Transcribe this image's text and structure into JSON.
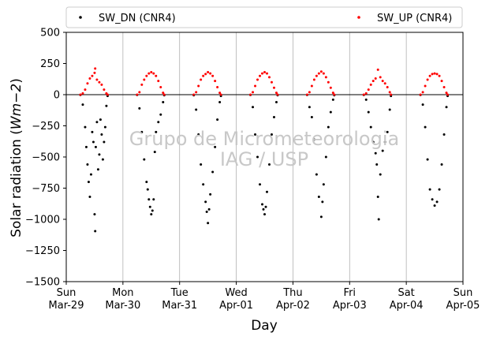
{
  "chart_data": {
    "type": "scatter",
    "xlabel": "Day",
    "ylabel": "Solar radiation (Wm−2)",
    "ylabel_parts": {
      "prefix": "Solar radiation (",
      "unit": "Wm−2",
      "suffix": ")"
    },
    "xlim": [
      "2020-03-29 00:00",
      "2020-04-05 00:00"
    ],
    "ylim": [
      -1500,
      500
    ],
    "yticks": [
      500,
      250,
      0,
      -250,
      -500,
      -750,
      -1000,
      -1250,
      -1500
    ],
    "ytick_labels": [
      "500",
      "250",
      "0",
      "−250",
      "−500",
      "−750",
      "−1000",
      "−1250",
      "−1500"
    ],
    "xticks": [
      {
        "date": "2020-03-29",
        "day": "Sun",
        "label": "Mar-29"
      },
      {
        "date": "2020-03-30",
        "day": "Mon",
        "label": "Mar-30"
      },
      {
        "date": "2020-03-31",
        "day": "Tue",
        "label": "Mar-31"
      },
      {
        "date": "2020-04-01",
        "day": "Wed",
        "label": "Apr-01"
      },
      {
        "date": "2020-04-02",
        "day": "Thu",
        "label": "Apr-02"
      },
      {
        "date": "2020-04-03",
        "day": "Fri",
        "label": "Apr-03"
      },
      {
        "date": "2020-04-04",
        "day": "Sat",
        "label": "Apr-04"
      },
      {
        "date": "2020-04-05",
        "day": "Sun",
        "label": "Apr-05"
      }
    ],
    "grid": "vertical",
    "zero_line": true,
    "legend": {
      "placement": "top",
      "entries": [
        "SW_DN (CNR4)",
        "SW_UP (CNR4)"
      ]
    },
    "watermark": [
      "Grupo de Micrometeorologia",
      "IAG / USP"
    ],
    "series": [
      {
        "name": "SW_DN (CNR4)",
        "color": "#000000",
        "points": [
          [
            "2020-03-29 06:00",
            -2
          ],
          [
            "2020-03-29 07:00",
            -80
          ],
          [
            "2020-03-29 08:00",
            -260
          ],
          [
            "2020-03-29 08:30",
            -420
          ],
          [
            "2020-03-29 09:00",
            -560
          ],
          [
            "2020-03-29 09:30",
            -700
          ],
          [
            "2020-03-29 10:00",
            -820
          ],
          [
            "2020-03-29 10:30",
            -640
          ],
          [
            "2020-03-29 11:00",
            -300
          ],
          [
            "2020-03-29 11:30",
            -380
          ],
          [
            "2020-03-29 12:00",
            -960
          ],
          [
            "2020-03-29 12:15",
            -1095
          ],
          [
            "2020-03-29 12:30",
            -420
          ],
          [
            "2020-03-29 13:00",
            -220
          ],
          [
            "2020-03-29 13:30",
            -600
          ],
          [
            "2020-03-29 14:00",
            -480
          ],
          [
            "2020-03-29 14:30",
            -200
          ],
          [
            "2020-03-29 15:00",
            -320
          ],
          [
            "2020-03-29 15:30",
            -520
          ],
          [
            "2020-03-29 16:00",
            -380
          ],
          [
            "2020-03-29 16:30",
            -260
          ],
          [
            "2020-03-29 17:00",
            -90
          ],
          [
            "2020-03-29 17:30",
            -10
          ],
          [
            "2020-03-30 06:00",
            -2
          ],
          [
            "2020-03-30 07:00",
            -110
          ],
          [
            "2020-03-30 08:00",
            -300
          ],
          [
            "2020-03-30 09:00",
            -520
          ],
          [
            "2020-03-30 10:00",
            -700
          ],
          [
            "2020-03-30 10:30",
            -760
          ],
          [
            "2020-03-30 11:00",
            -840
          ],
          [
            "2020-03-30 11:30",
            -900
          ],
          [
            "2020-03-30 12:00",
            -960
          ],
          [
            "2020-03-30 12:30",
            -930
          ],
          [
            "2020-03-30 13:00",
            -840
          ],
          [
            "2020-03-30 13:30",
            -460
          ],
          [
            "2020-03-30 14:00",
            -300
          ],
          [
            "2020-03-30 15:00",
            -220
          ],
          [
            "2020-03-30 16:00",
            -160
          ],
          [
            "2020-03-30 17:00",
            -60
          ],
          [
            "2020-03-30 17:30",
            -5
          ],
          [
            "2020-03-31 06:00",
            -5
          ],
          [
            "2020-03-31 07:00",
            -120
          ],
          [
            "2020-03-31 08:00",
            -320
          ],
          [
            "2020-03-31 09:00",
            -560
          ],
          [
            "2020-03-31 10:00",
            -720
          ],
          [
            "2020-03-31 11:00",
            -860
          ],
          [
            "2020-03-31 11:30",
            -940
          ],
          [
            "2020-03-31 12:00",
            -1030
          ],
          [
            "2020-03-31 12:30",
            -920
          ],
          [
            "2020-03-31 13:00",
            -800
          ],
          [
            "2020-03-31 14:00",
            -620
          ],
          [
            "2020-03-31 15:00",
            -420
          ],
          [
            "2020-03-31 16:00",
            -200
          ],
          [
            "2020-03-31 17:00",
            -60
          ],
          [
            "2020-03-31 17:30",
            -10
          ],
          [
            "2020-04-01 06:00",
            -2
          ],
          [
            "2020-04-01 07:00",
            -100
          ],
          [
            "2020-04-01 08:00",
            -320
          ],
          [
            "2020-04-01 09:00",
            -500
          ],
          [
            "2020-04-01 10:00",
            -720
          ],
          [
            "2020-04-01 11:00",
            -880
          ],
          [
            "2020-04-01 11:30",
            -920
          ],
          [
            "2020-04-01 12:00",
            -960
          ],
          [
            "2020-04-01 12:30",
            -900
          ],
          [
            "2020-04-01 13:00",
            -780
          ],
          [
            "2020-04-01 14:00",
            -560
          ],
          [
            "2020-04-01 15:00",
            -320
          ],
          [
            "2020-04-01 16:00",
            -180
          ],
          [
            "2020-04-01 17:00",
            -60
          ],
          [
            "2020-04-01 17:30",
            -5
          ],
          [
            "2020-04-02 06:00",
            -2
          ],
          [
            "2020-04-02 07:00",
            -100
          ],
          [
            "2020-04-02 08:00",
            -180
          ],
          [
            "2020-04-02 09:00",
            -360
          ],
          [
            "2020-04-02 10:00",
            -640
          ],
          [
            "2020-04-02 11:00",
            -820
          ],
          [
            "2020-04-02 12:00",
            -980
          ],
          [
            "2020-04-02 12:30",
            -860
          ],
          [
            "2020-04-02 13:00",
            -720
          ],
          [
            "2020-04-02 14:00",
            -500
          ],
          [
            "2020-04-02 15:00",
            -260
          ],
          [
            "2020-04-02 16:00",
            -140
          ],
          [
            "2020-04-02 17:00",
            -40
          ],
          [
            "2020-04-02 17:30",
            -5
          ],
          [
            "2020-04-03 06:00",
            -2
          ],
          [
            "2020-04-03 07:00",
            -40
          ],
          [
            "2020-04-03 08:00",
            -140
          ],
          [
            "2020-04-03 09:00",
            -260
          ],
          [
            "2020-04-03 10:00",
            -380
          ],
          [
            "2020-04-03 11:00",
            -470
          ],
          [
            "2020-04-03 11:30",
            -560
          ],
          [
            "2020-04-03 12:00",
            -820
          ],
          [
            "2020-04-03 12:20",
            -1000
          ],
          [
            "2020-04-03 13:00",
            -640
          ],
          [
            "2020-04-03 14:00",
            -450
          ],
          [
            "2020-04-03 15:00",
            -380
          ],
          [
            "2020-04-03 16:00",
            -300
          ],
          [
            "2020-04-03 17:00",
            -120
          ],
          [
            "2020-04-03 17:30",
            -10
          ],
          [
            "2020-04-04 06:00",
            -2
          ],
          [
            "2020-04-04 07:00",
            -80
          ],
          [
            "2020-04-04 08:00",
            -260
          ],
          [
            "2020-04-04 09:00",
            -520
          ],
          [
            "2020-04-04 10:00",
            -760
          ],
          [
            "2020-04-04 11:00",
            -840
          ],
          [
            "2020-04-04 12:00",
            -890
          ],
          [
            "2020-04-04 13:00",
            -860
          ],
          [
            "2020-04-04 14:00",
            -760
          ],
          [
            "2020-04-04 15:00",
            -560
          ],
          [
            "2020-04-04 16:00",
            -320
          ],
          [
            "2020-04-04 17:00",
            -100
          ],
          [
            "2020-04-04 17:30",
            -10
          ]
        ]
      },
      {
        "name": "SW_UP (CNR4)",
        "color": "#ff0000",
        "points": [
          [
            "2020-03-29 06:00",
            0
          ],
          [
            "2020-03-29 07:00",
            10
          ],
          [
            "2020-03-29 08:00",
            40
          ],
          [
            "2020-03-29 09:00",
            90
          ],
          [
            "2020-03-29 10:00",
            130
          ],
          [
            "2020-03-29 11:00",
            150
          ],
          [
            "2020-03-29 12:00",
            175
          ],
          [
            "2020-03-29 12:15",
            210
          ],
          [
            "2020-03-29 13:00",
            120
          ],
          [
            "2020-03-29 14:00",
            100
          ],
          [
            "2020-03-29 15:00",
            80
          ],
          [
            "2020-03-29 16:00",
            40
          ],
          [
            "2020-03-29 17:00",
            10
          ],
          [
            "2020-03-29 17:30",
            0
          ],
          [
            "2020-03-30 06:00",
            0
          ],
          [
            "2020-03-30 07:00",
            20
          ],
          [
            "2020-03-30 08:00",
            80
          ],
          [
            "2020-03-30 09:00",
            120
          ],
          [
            "2020-03-30 10:00",
            150
          ],
          [
            "2020-03-30 11:00",
            170
          ],
          [
            "2020-03-30 12:00",
            180
          ],
          [
            "2020-03-30 13:00",
            170
          ],
          [
            "2020-03-30 14:00",
            150
          ],
          [
            "2020-03-30 15:00",
            110
          ],
          [
            "2020-03-30 16:00",
            60
          ],
          [
            "2020-03-30 17:00",
            15
          ],
          [
            "2020-03-30 17:30",
            0
          ],
          [
            "2020-03-31 06:00",
            0
          ],
          [
            "2020-03-31 07:00",
            20
          ],
          [
            "2020-03-31 08:00",
            70
          ],
          [
            "2020-03-31 09:00",
            120
          ],
          [
            "2020-03-31 10:00",
            150
          ],
          [
            "2020-03-31 11:00",
            165
          ],
          [
            "2020-03-31 12:00",
            180
          ],
          [
            "2020-03-31 13:00",
            170
          ],
          [
            "2020-03-31 14:00",
            150
          ],
          [
            "2020-03-31 15:00",
            110
          ],
          [
            "2020-03-31 16:00",
            60
          ],
          [
            "2020-03-31 17:00",
            15
          ],
          [
            "2020-03-31 17:30",
            0
          ],
          [
            "2020-04-01 06:00",
            0
          ],
          [
            "2020-04-01 07:00",
            20
          ],
          [
            "2020-04-01 08:00",
            70
          ],
          [
            "2020-04-01 09:00",
            120
          ],
          [
            "2020-04-01 10:00",
            150
          ],
          [
            "2020-04-01 11:00",
            170
          ],
          [
            "2020-04-01 12:00",
            180
          ],
          [
            "2020-04-01 13:00",
            170
          ],
          [
            "2020-04-01 14:00",
            140
          ],
          [
            "2020-04-01 15:00",
            100
          ],
          [
            "2020-04-01 16:00",
            55
          ],
          [
            "2020-04-01 17:00",
            15
          ],
          [
            "2020-04-01 17:30",
            0
          ],
          [
            "2020-04-02 06:00",
            0
          ],
          [
            "2020-04-02 07:00",
            20
          ],
          [
            "2020-04-02 08:00",
            70
          ],
          [
            "2020-04-02 09:00",
            120
          ],
          [
            "2020-04-02 10:00",
            150
          ],
          [
            "2020-04-02 11:00",
            170
          ],
          [
            "2020-04-02 12:00",
            185
          ],
          [
            "2020-04-02 13:00",
            170
          ],
          [
            "2020-04-02 14:00",
            140
          ],
          [
            "2020-04-02 15:00",
            100
          ],
          [
            "2020-04-02 16:00",
            55
          ],
          [
            "2020-04-02 17:00",
            15
          ],
          [
            "2020-04-02 17:30",
            0
          ],
          [
            "2020-04-03 06:00",
            0
          ],
          [
            "2020-04-03 07:00",
            10
          ],
          [
            "2020-04-03 08:00",
            40
          ],
          [
            "2020-04-03 09:00",
            80
          ],
          [
            "2020-04-03 10:00",
            110
          ],
          [
            "2020-04-03 11:00",
            130
          ],
          [
            "2020-04-03 12:00",
            200
          ],
          [
            "2020-04-03 13:00",
            140
          ],
          [
            "2020-04-03 14:00",
            110
          ],
          [
            "2020-04-03 15:00",
            90
          ],
          [
            "2020-04-03 16:00",
            60
          ],
          [
            "2020-04-03 17:00",
            20
          ],
          [
            "2020-04-03 17:30",
            0
          ],
          [
            "2020-04-04 06:00",
            0
          ],
          [
            "2020-04-04 07:00",
            20
          ],
          [
            "2020-04-04 08:00",
            70
          ],
          [
            "2020-04-04 09:00",
            120
          ],
          [
            "2020-04-04 10:00",
            150
          ],
          [
            "2020-04-04 11:00",
            165
          ],
          [
            "2020-04-04 12:00",
            170
          ],
          [
            "2020-04-04 13:00",
            165
          ],
          [
            "2020-04-04 14:00",
            150
          ],
          [
            "2020-04-04 15:00",
            110
          ],
          [
            "2020-04-04 16:00",
            60
          ],
          [
            "2020-04-04 17:00",
            15
          ],
          [
            "2020-04-04 17:30",
            0
          ]
        ]
      }
    ]
  }
}
